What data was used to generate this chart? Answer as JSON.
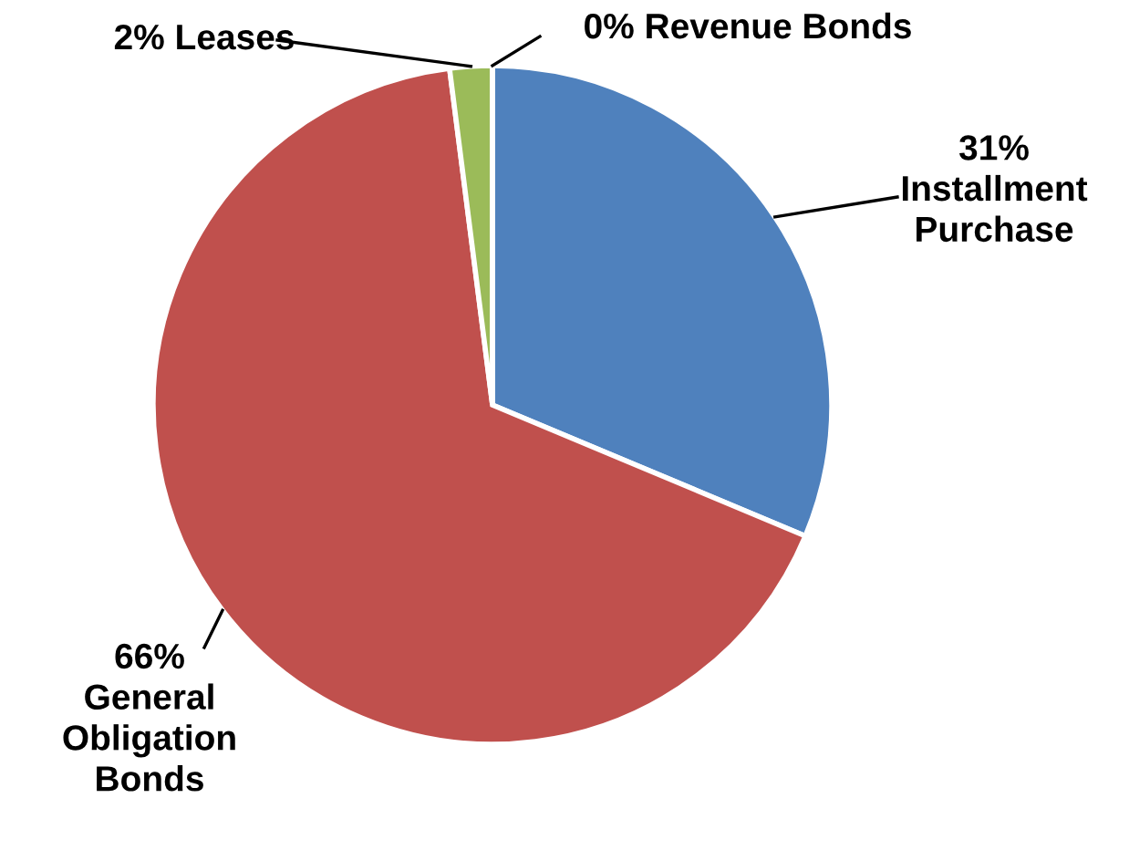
{
  "chart_data": {
    "type": "pie",
    "categories": [
      "Installment Purchase",
      "General Obligation Bonds",
      "Leases",
      "Revenue Bonds"
    ],
    "values": [
      31,
      66,
      2,
      0
    ],
    "value_labels": [
      "31%",
      "66%",
      "2%",
      "0%"
    ],
    "colors": [
      "#4f81bd",
      "#c0504d",
      "#9bbb59",
      "#8064a2"
    ],
    "legend": false
  }
}
